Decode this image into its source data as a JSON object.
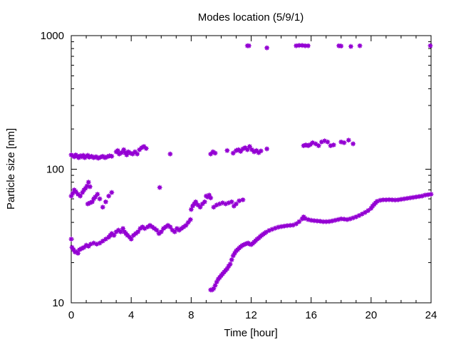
{
  "chart_data": {
    "type": "scatter",
    "title": "Modes location (5/9/1)",
    "xlabel": "Time [hour]",
    "ylabel": "Particle size [nm]",
    "x_ticks": [
      0,
      4,
      8,
      12,
      16,
      20,
      24
    ],
    "y_ticks": [
      10,
      100,
      1000
    ],
    "xlim": [
      0,
      24
    ],
    "ylim": [
      10,
      1000
    ],
    "y_scale": "log",
    "grid": false,
    "legend": "none",
    "marker_color": "#9400d3",
    "series": [
      {
        "points": [
          [
            0.0,
            30
          ],
          [
            0.05,
            26
          ],
          [
            0.15,
            25
          ],
          [
            0.25,
            24
          ],
          [
            0.35,
            24
          ],
          [
            0.45,
            23.5
          ],
          [
            0.55,
            25
          ],
          [
            0.7,
            25.5
          ],
          [
            0.85,
            26
          ],
          [
            1.0,
            27
          ],
          [
            1.15,
            26.5
          ],
          [
            1.3,
            27.5
          ],
          [
            1.5,
            28
          ],
          [
            1.7,
            27.5
          ],
          [
            1.9,
            28
          ],
          [
            2.1,
            29
          ],
          [
            2.3,
            30
          ],
          [
            2.5,
            31
          ],
          [
            2.6,
            32
          ],
          [
            2.7,
            33
          ],
          [
            2.85,
            32
          ],
          [
            3.0,
            34
          ],
          [
            3.15,
            35
          ],
          [
            3.3,
            34
          ],
          [
            3.45,
            36
          ],
          [
            3.55,
            34
          ],
          [
            3.65,
            33
          ],
          [
            3.75,
            32
          ],
          [
            3.9,
            31
          ],
          [
            4.0,
            30
          ],
          [
            4.15,
            32
          ],
          [
            4.3,
            33
          ],
          [
            4.45,
            34
          ],
          [
            4.6,
            36
          ],
          [
            4.75,
            37
          ],
          [
            4.9,
            36
          ],
          [
            5.1,
            37
          ],
          [
            5.25,
            38
          ],
          [
            5.4,
            37
          ],
          [
            5.55,
            36
          ],
          [
            5.7,
            35
          ],
          [
            5.85,
            33
          ],
          [
            6.0,
            34
          ],
          [
            6.15,
            36
          ],
          [
            6.3,
            37
          ],
          [
            6.45,
            38
          ],
          [
            6.6,
            37
          ],
          [
            6.75,
            35
          ],
          [
            6.9,
            34
          ],
          [
            7.05,
            36
          ],
          [
            7.2,
            35
          ],
          [
            7.35,
            36
          ],
          [
            7.5,
            37
          ],
          [
            7.65,
            38
          ],
          [
            7.8,
            40
          ],
          [
            7.95,
            42
          ],
          [
            8.0,
            50
          ],
          [
            8.1,
            53
          ],
          [
            8.2,
            55
          ],
          [
            8.3,
            57
          ],
          [
            8.45,
            54
          ],
          [
            8.6,
            52
          ],
          [
            8.75,
            55
          ],
          [
            8.9,
            57
          ],
          [
            9.0,
            63
          ],
          [
            9.1,
            62
          ],
          [
            9.2,
            64
          ],
          [
            9.3,
            61
          ],
          [
            9.5,
            52
          ],
          [
            9.7,
            54
          ],
          [
            9.9,
            55
          ],
          [
            10.1,
            56
          ],
          [
            10.3,
            55
          ],
          [
            10.5,
            56
          ],
          [
            10.7,
            57
          ],
          [
            10.85,
            53
          ],
          [
            11.0,
            55
          ],
          [
            11.2,
            58
          ],
          [
            11.45,
            59
          ]
        ]
      },
      {
        "points": [
          [
            0.0,
            63
          ],
          [
            0.1,
            66
          ],
          [
            0.2,
            70
          ],
          [
            0.3,
            68
          ],
          [
            0.45,
            65
          ],
          [
            0.6,
            63
          ],
          [
            0.75,
            67
          ],
          [
            0.85,
            70
          ],
          [
            0.95,
            72
          ],
          [
            1.05,
            75
          ],
          [
            1.15,
            80
          ],
          [
            1.25,
            74
          ],
          [
            1.1,
            55
          ],
          [
            1.25,
            56
          ],
          [
            1.4,
            57
          ],
          [
            1.5,
            60
          ],
          [
            1.6,
            62
          ],
          [
            1.75,
            65
          ],
          [
            1.9,
            60
          ],
          [
            2.1,
            52
          ],
          [
            2.3,
            57
          ],
          [
            2.5,
            63
          ],
          [
            2.7,
            67
          ],
          [
            5.9,
            73
          ]
        ]
      },
      {
        "points": [
          [
            0.0,
            128
          ],
          [
            0.1,
            126
          ],
          [
            0.2,
            124
          ],
          [
            0.3,
            128
          ],
          [
            0.4,
            125
          ],
          [
            0.5,
            122
          ],
          [
            0.6,
            126
          ],
          [
            0.7,
            124
          ],
          [
            0.8,
            127
          ],
          [
            0.9,
            122
          ],
          [
            1.0,
            125
          ],
          [
            1.1,
            127
          ],
          [
            1.2,
            123
          ],
          [
            1.35,
            125
          ],
          [
            1.5,
            122
          ],
          [
            1.65,
            124
          ],
          [
            1.8,
            121
          ],
          [
            1.95,
            123
          ],
          [
            2.1,
            125
          ],
          [
            2.25,
            122
          ],
          [
            2.4,
            124
          ],
          [
            2.55,
            126
          ],
          [
            2.7,
            125
          ],
          [
            3.0,
            135
          ],
          [
            3.1,
            138
          ],
          [
            3.2,
            130
          ],
          [
            3.35,
            133
          ],
          [
            3.5,
            140
          ],
          [
            3.6,
            133
          ],
          [
            3.7,
            128
          ],
          [
            3.8,
            135
          ],
          [
            3.95,
            132
          ],
          [
            4.1,
            130
          ],
          [
            4.25,
            135
          ],
          [
            4.4,
            130
          ],
          [
            4.55,
            140
          ],
          [
            4.7,
            145
          ],
          [
            4.85,
            148
          ],
          [
            5.0,
            143
          ],
          [
            6.6,
            130
          ],
          [
            9.3,
            130
          ],
          [
            9.45,
            135
          ],
          [
            9.6,
            132
          ],
          [
            10.4,
            138
          ],
          [
            10.8,
            132
          ],
          [
            11.0,
            138
          ],
          [
            11.15,
            140
          ],
          [
            11.3,
            136
          ],
          [
            11.45,
            142
          ],
          [
            11.6,
            145
          ],
          [
            11.75,
            140
          ],
          [
            11.9,
            148
          ],
          [
            12.05,
            140
          ],
          [
            12.2,
            135
          ],
          [
            12.35,
            138
          ],
          [
            12.5,
            133
          ],
          [
            12.65,
            137
          ],
          [
            13.05,
            142
          ],
          [
            15.5,
            150
          ],
          [
            15.65,
            152
          ],
          [
            15.8,
            150
          ],
          [
            15.95,
            153
          ],
          [
            16.1,
            158
          ],
          [
            16.3,
            155
          ],
          [
            16.5,
            150
          ],
          [
            16.7,
            160
          ],
          [
            16.9,
            163
          ],
          [
            17.1,
            160
          ],
          [
            17.3,
            150
          ],
          [
            17.5,
            152
          ],
          [
            18.0,
            160
          ],
          [
            18.2,
            158
          ],
          [
            18.5,
            165
          ],
          [
            18.8,
            155
          ]
        ]
      },
      {
        "points": [
          [
            11.75,
            840
          ],
          [
            11.85,
            840
          ],
          [
            13.05,
            810
          ],
          [
            15.0,
            840
          ],
          [
            15.2,
            845
          ],
          [
            15.4,
            845
          ],
          [
            15.6,
            840
          ],
          [
            15.8,
            840
          ],
          [
            17.85,
            840
          ],
          [
            18.0,
            835
          ],
          [
            18.65,
            830
          ],
          [
            19.25,
            840
          ],
          [
            23.95,
            840
          ]
        ]
      },
      {
        "points": [
          [
            9.3,
            12.5
          ],
          [
            9.4,
            12.5
          ],
          [
            9.5,
            12.8
          ],
          [
            9.6,
            13.5
          ],
          [
            9.7,
            14.3
          ],
          [
            9.8,
            15
          ],
          [
            9.9,
            15.5
          ],
          [
            10.0,
            16
          ],
          [
            10.1,
            16.5
          ],
          [
            10.2,
            17
          ],
          [
            10.3,
            17.5
          ],
          [
            10.4,
            18
          ],
          [
            10.5,
            18.8
          ],
          [
            10.6,
            19.5
          ],
          [
            10.7,
            21
          ],
          [
            10.8,
            22.5
          ],
          [
            10.9,
            23.5
          ],
          [
            11.0,
            24.5
          ],
          [
            11.1,
            25
          ],
          [
            11.2,
            25.7
          ],
          [
            11.3,
            26.3
          ],
          [
            11.4,
            26.8
          ],
          [
            11.5,
            27.2
          ],
          [
            11.6,
            27.5
          ],
          [
            11.7,
            27.8
          ],
          [
            11.8,
            28
          ],
          [
            11.9,
            27.5
          ],
          [
            12.0,
            27.3
          ],
          [
            12.1,
            27.8
          ],
          [
            12.2,
            28.5
          ],
          [
            12.3,
            29.2
          ],
          [
            12.4,
            30
          ],
          [
            12.5,
            30.5
          ],
          [
            12.6,
            31.3
          ],
          [
            12.7,
            32
          ],
          [
            12.8,
            32.6
          ],
          [
            12.9,
            33.2
          ],
          [
            13.0,
            33.8
          ],
          [
            13.2,
            34.8
          ],
          [
            13.4,
            35.5
          ],
          [
            13.6,
            36.2
          ],
          [
            13.8,
            36.8
          ],
          [
            14.0,
            37.2
          ],
          [
            14.2,
            37.5
          ],
          [
            14.4,
            37.8
          ],
          [
            14.6,
            38
          ],
          [
            14.8,
            38.2
          ],
          [
            15.0,
            39
          ],
          [
            15.2,
            40.5
          ],
          [
            15.4,
            42.5
          ],
          [
            15.5,
            44
          ],
          [
            15.6,
            42.8
          ],
          [
            15.8,
            42
          ],
          [
            16.0,
            41.5
          ],
          [
            16.2,
            41.2
          ],
          [
            16.4,
            41
          ],
          [
            16.6,
            40.8
          ],
          [
            16.8,
            40.5
          ],
          [
            17.0,
            40.5
          ],
          [
            17.2,
            40.6
          ],
          [
            17.4,
            41
          ],
          [
            17.6,
            41.5
          ],
          [
            17.8,
            42
          ],
          [
            18.0,
            42.5
          ],
          [
            18.2,
            42.3
          ],
          [
            18.4,
            42
          ],
          [
            18.6,
            42.5
          ],
          [
            18.8,
            43.2
          ],
          [
            19.0,
            44
          ],
          [
            19.2,
            45
          ],
          [
            19.4,
            46.2
          ],
          [
            19.6,
            47.5
          ],
          [
            19.8,
            49
          ],
          [
            20.0,
            51
          ],
          [
            20.1,
            53
          ],
          [
            20.2,
            54.5
          ],
          [
            20.3,
            56
          ],
          [
            20.4,
            57.5
          ],
          [
            20.6,
            58.5
          ],
          [
            20.8,
            59
          ],
          [
            21.0,
            59
          ],
          [
            21.2,
            59.2
          ],
          [
            21.4,
            59
          ],
          [
            21.6,
            58.8
          ],
          [
            21.8,
            59
          ],
          [
            22.0,
            59.5
          ],
          [
            22.2,
            60
          ],
          [
            22.4,
            60.5
          ],
          [
            22.6,
            61
          ],
          [
            22.8,
            61.5
          ],
          [
            23.0,
            62
          ],
          [
            23.2,
            62.5
          ],
          [
            23.4,
            63
          ],
          [
            23.6,
            64
          ],
          [
            23.8,
            64.5
          ],
          [
            24.0,
            65
          ]
        ]
      }
    ]
  }
}
